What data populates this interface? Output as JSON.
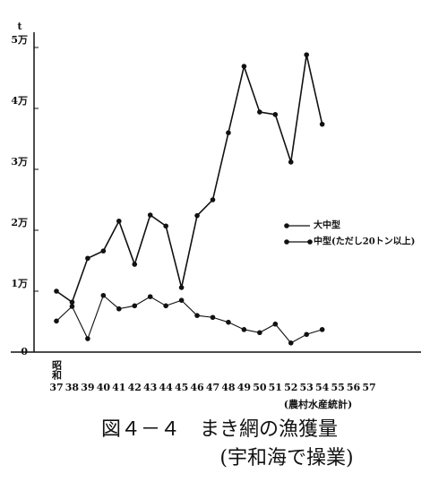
{
  "chart_data": {
    "type": "line",
    "title": "図４－４　まき網の漁獲量",
    "subtitle": "(宇和海で操業)",
    "source": "(農村水産統計)",
    "y_unit": "t",
    "era_label": "昭和",
    "categories": [
      "37",
      "38",
      "39",
      "40",
      "41",
      "42",
      "43",
      "44",
      "45",
      "46",
      "47",
      "48",
      "49",
      "50",
      "51",
      "52",
      "53",
      "54",
      "55",
      "56",
      "57"
    ],
    "series": [
      {
        "name": "大中型",
        "color": "#111111",
        "values": [
          10000,
          8200,
          15400,
          16600,
          21500,
          14400,
          22500,
          20700,
          10600,
          22400,
          25000,
          36000,
          46900,
          39400,
          39000,
          31200,
          48800,
          37400,
          null,
          null,
          null
        ]
      },
      {
        "name": "中型(ただし20トン以上)",
        "color": "#111111",
        "values": [
          5100,
          7500,
          2200,
          9300,
          7100,
          7600,
          9100,
          7600,
          8500,
          6000,
          5700,
          4900,
          3700,
          3200,
          4600,
          1500,
          2900,
          3700,
          null,
          null,
          null
        ]
      }
    ],
    "ylim": [
      0,
      52000
    ],
    "yticks": [
      0,
      {
        "value": 10000,
        "label": "1万"
      },
      {
        "value": 20000,
        "label": "2万"
      },
      {
        "value": 30000,
        "label": "3万"
      },
      {
        "value": 40000,
        "label": "4万"
      },
      {
        "value": 50000,
        "label": "5万"
      }
    ],
    "legend": "right"
  }
}
